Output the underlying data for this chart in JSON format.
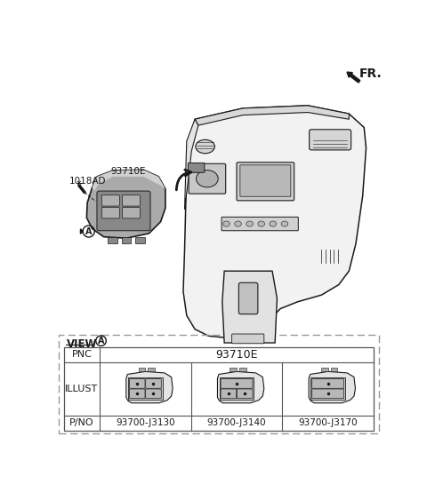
{
  "fr_label": "FR.",
  "label_1018AD": "1018AD",
  "label_93710E": "93710E",
  "label_A": "A",
  "view_label": "VIEW",
  "pnc_label": "PNC",
  "pnc_value": "93710E",
  "illust_label": "ILLUST",
  "pno_label": "P/NO",
  "part_numbers": [
    "93700-J3130",
    "93700-J3140",
    "93700-J3170"
  ],
  "bg_color": "#ffffff",
  "line_color": "#1a1a1a",
  "gray_fill": "#b0b0b0",
  "light_gray": "#e0e0e0",
  "dash_border": "#888888",
  "table_line": "#555555"
}
